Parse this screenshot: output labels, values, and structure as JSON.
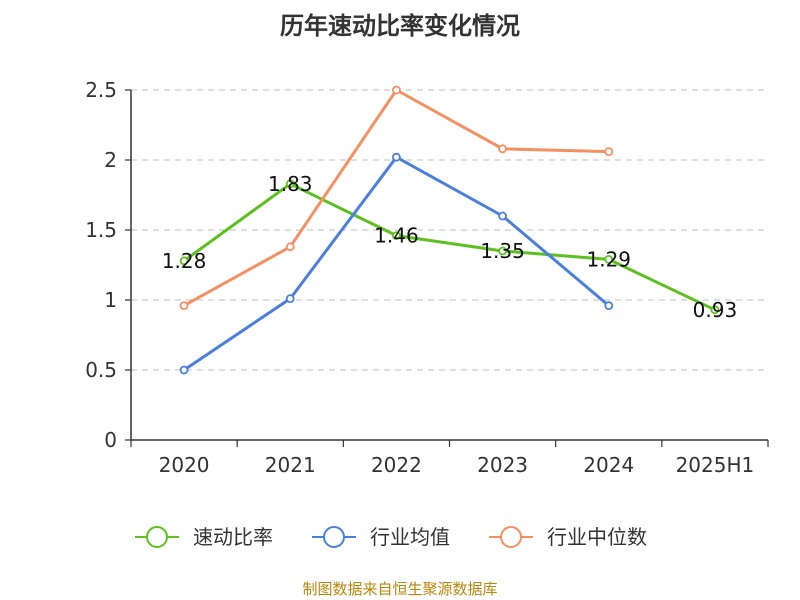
{
  "chart_data": {
    "type": "line",
    "title": "历年速动比率变化情况",
    "categories": [
      "2020",
      "2021",
      "2022",
      "2023",
      "2024",
      "2025H1"
    ],
    "ylim": [
      0,
      2.5
    ],
    "yticks": [
      "0",
      "0.5",
      "1",
      "1.5",
      "2",
      "2.5"
    ],
    "grid": true,
    "legend_position": "bottom",
    "series": [
      {
        "name": "速动比率",
        "color": "#5cc11f",
        "values": [
          1.28,
          1.83,
          1.46,
          1.35,
          1.29,
          0.93
        ],
        "labels": [
          "1.28",
          "1.83",
          "1.46",
          "1.35",
          "1.29",
          "0.93"
        ]
      },
      {
        "name": "行业均值",
        "color": "#4a7fde",
        "values": [
          0.5,
          1.01,
          2.02,
          1.6,
          0.96,
          null
        ]
      },
      {
        "name": "行业中位数",
        "color": "#f49062",
        "values": [
          0.96,
          1.38,
          2.5,
          2.08,
          2.06,
          null
        ]
      }
    ]
  },
  "source_note": "制图数据来自恒生聚源数据库"
}
